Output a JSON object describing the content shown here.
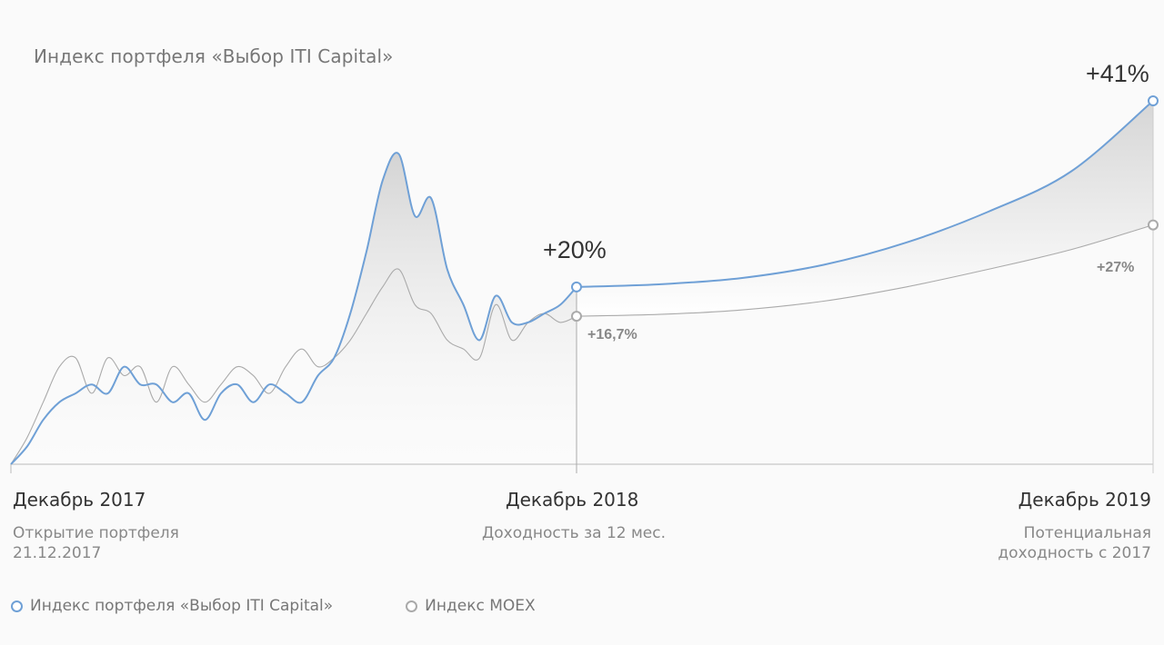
{
  "chart_data": {
    "type": "line",
    "title": "Индекс портфеля «Выбор ITI Capital»",
    "x_ticks": [
      {
        "label": "Декабрь 2017",
        "sub": [
          "Открытие портфеля",
          "21.12.2017"
        ]
      },
      {
        "label": "Декабрь 2018",
        "sub": [
          "Доходность за 12 мес."
        ]
      },
      {
        "label": "Декабрь 2019",
        "sub": [
          "Потенциальная",
          "доходность с 2017"
        ]
      }
    ],
    "ylim": [
      0,
      50
    ],
    "series": [
      {
        "name": "Индекс портфеля «Выбор ITI Capital»",
        "color": "#6fa0d6",
        "historical": [
          0,
          2,
          5,
          7,
          8,
          9,
          8,
          11,
          9,
          9,
          7,
          8,
          5,
          8,
          9,
          7,
          9,
          8,
          7,
          10,
          12,
          17,
          24,
          32,
          35,
          28,
          30,
          22,
          18,
          14,
          19,
          16,
          16,
          17,
          18,
          20
        ],
        "forecast": [
          20,
          20.3,
          21,
          22.5,
          25,
          28.5,
          33,
          41
        ],
        "annotations": [
          {
            "at": "Декабрь 2018",
            "text": "+20%"
          },
          {
            "at": "Декабрь 2019",
            "text": "+41%"
          }
        ]
      },
      {
        "name": "Индекс MOEX",
        "color": "#aaaaaa",
        "historical": [
          0,
          3,
          7,
          11,
          12,
          8,
          12,
          10,
          11,
          7,
          11,
          9,
          7,
          9,
          11,
          10,
          8,
          11,
          13,
          11,
          12,
          14,
          17,
          20,
          22,
          18,
          17,
          14,
          13,
          12,
          18,
          14,
          16,
          17,
          16,
          16.7
        ],
        "forecast": [
          16.7,
          16.9,
          17.4,
          18.4,
          20,
          22,
          24.2,
          27
        ],
        "annotations": [
          {
            "at": "Декабрь 2018",
            "text": "+16,7%"
          },
          {
            "at": "Декабрь 2019",
            "text": "+27%"
          }
        ]
      }
    ],
    "grid": false,
    "legend": "bottom-left"
  }
}
